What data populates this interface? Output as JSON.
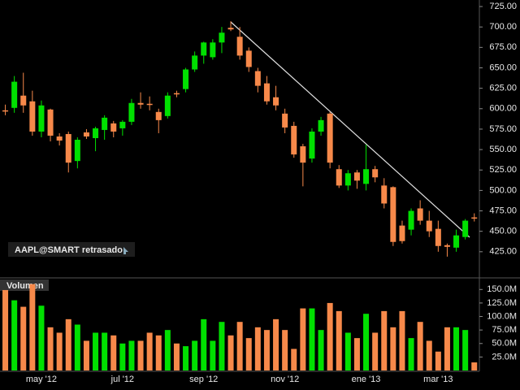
{
  "chart_data": [
    {
      "type": "candlestick",
      "label": "AAPL@SMART retrasado",
      "categories": [
        null,
        null,
        null,
        null,
        "may '12",
        null,
        null,
        null,
        null,
        null,
        null,
        null,
        null,
        "jul '12",
        null,
        null,
        null,
        null,
        null,
        null,
        null,
        null,
        "sep '12",
        null,
        null,
        null,
        null,
        null,
        null,
        null,
        null,
        "nov '12",
        null,
        null,
        null,
        null,
        null,
        null,
        null,
        null,
        "ene '13",
        null,
        null,
        null,
        null,
        null,
        null,
        null,
        "mar '13",
        null,
        null,
        null,
        null
      ],
      "open": [
        598,
        601,
        616,
        609,
        572,
        599,
        566,
        569,
        536,
        571,
        564,
        574,
        582,
        576,
        584,
        607,
        606,
        596,
        591,
        619,
        624,
        648,
        665,
        663,
        681,
        699,
        688,
        671,
        646,
        631,
        614,
        594,
        579,
        554,
        539,
        572,
        594,
        526,
        506,
        522,
        508,
        526,
        506,
        504,
        457,
        452,
        478,
        463,
        453,
        433,
        430,
        443,
        467
      ],
      "high": [
        605,
        640,
        644,
        622,
        610,
        600,
        570,
        572,
        565,
        575,
        578,
        592,
        585,
        586,
        612,
        620,
        615,
        600,
        620,
        622,
        650,
        670,
        682,
        685,
        700,
        707,
        700,
        675,
        650,
        640,
        628,
        600,
        584,
        557,
        576,
        590,
        596,
        531,
        525,
        525,
        556,
        530,
        515,
        505,
        463,
        478,
        488,
        475,
        463,
        435,
        452,
        465,
        472
      ],
      "low": [
        592,
        595,
        595,
        567,
        565,
        560,
        555,
        522,
        527,
        563,
        548,
        562,
        565,
        567,
        580,
        600,
        598,
        570,
        588,
        614,
        620,
        645,
        655,
        660,
        668,
        695,
        660,
        645,
        620,
        605,
        598,
        570,
        540,
        505,
        534,
        567,
        527,
        503,
        500,
        502,
        500,
        510,
        478,
        432,
        435,
        445,
        458,
        443,
        425,
        419,
        425,
        440,
        462
      ],
      "close": [
        597,
        633,
        604,
        572,
        604,
        567,
        561,
        534,
        562,
        566,
        576,
        589,
        572,
        584,
        607,
        605,
        605,
        586,
        616,
        618,
        648,
        665,
        681,
        681,
        693,
        697,
        665,
        651,
        628,
        609,
        604,
        577,
        544,
        534,
        572,
        586,
        534,
        506,
        521,
        512,
        526,
        516,
        484,
        437,
        438,
        475,
        463,
        450,
        432,
        431,
        445,
        463,
        466
      ],
      "up_color": "#00e000",
      "down_color": "#f7894a",
      "ylim": [
        395,
        733
      ],
      "yticks": [
        {
          "value": 425,
          "label": "425.00"
        },
        {
          "value": 450,
          "label": "450.00"
        },
        {
          "value": 475,
          "label": "475.00"
        },
        {
          "value": 500,
          "label": "500.00"
        },
        {
          "value": 525,
          "label": "525.00"
        },
        {
          "value": 550,
          "label": "550.00"
        },
        {
          "value": 575,
          "label": "575.00"
        },
        {
          "value": 600,
          "label": "600.00"
        },
        {
          "value": 625,
          "label": "625.00"
        },
        {
          "value": 650,
          "label": "650.00"
        },
        {
          "value": 675,
          "label": "675.00"
        },
        {
          "value": 700,
          "label": "700.00"
        },
        {
          "value": 725,
          "label": "725.00"
        }
      ]
    },
    {
      "type": "bar",
      "title": "Volumen",
      "values": [
        149000000,
        130000000,
        118000000,
        160000000,
        120000000,
        80000000,
        70000000,
        95000000,
        85000000,
        55000000,
        70000000,
        70000000,
        65000000,
        50000000,
        55000000,
        55000000,
        70000000,
        65000000,
        75000000,
        50000000,
        45000000,
        55000000,
        95000000,
        55000000,
        90000000,
        65000000,
        90000000,
        60000000,
        80000000,
        75000000,
        95000000,
        75000000,
        40000000,
        115000000,
        115000000,
        75000000,
        125000000,
        110000000,
        70000000,
        60000000,
        105000000,
        70000000,
        110000000,
        80000000,
        110000000,
        60000000,
        90000000,
        55000000,
        35000000,
        80000000,
        80000000,
        75000000,
        15000000
      ],
      "ylim": [
        0,
        167000000
      ],
      "yticks": [
        {
          "value": 25000000,
          "label": "25.0M"
        },
        {
          "value": 50000000,
          "label": "50.0M"
        },
        {
          "value": 75000000,
          "label": "75.0M"
        },
        {
          "value": 100000000,
          "label": "100.0M"
        },
        {
          "value": 125000000,
          "label": "125.0M"
        },
        {
          "value": 150000000,
          "label": "150.0M"
        }
      ]
    }
  ]
}
